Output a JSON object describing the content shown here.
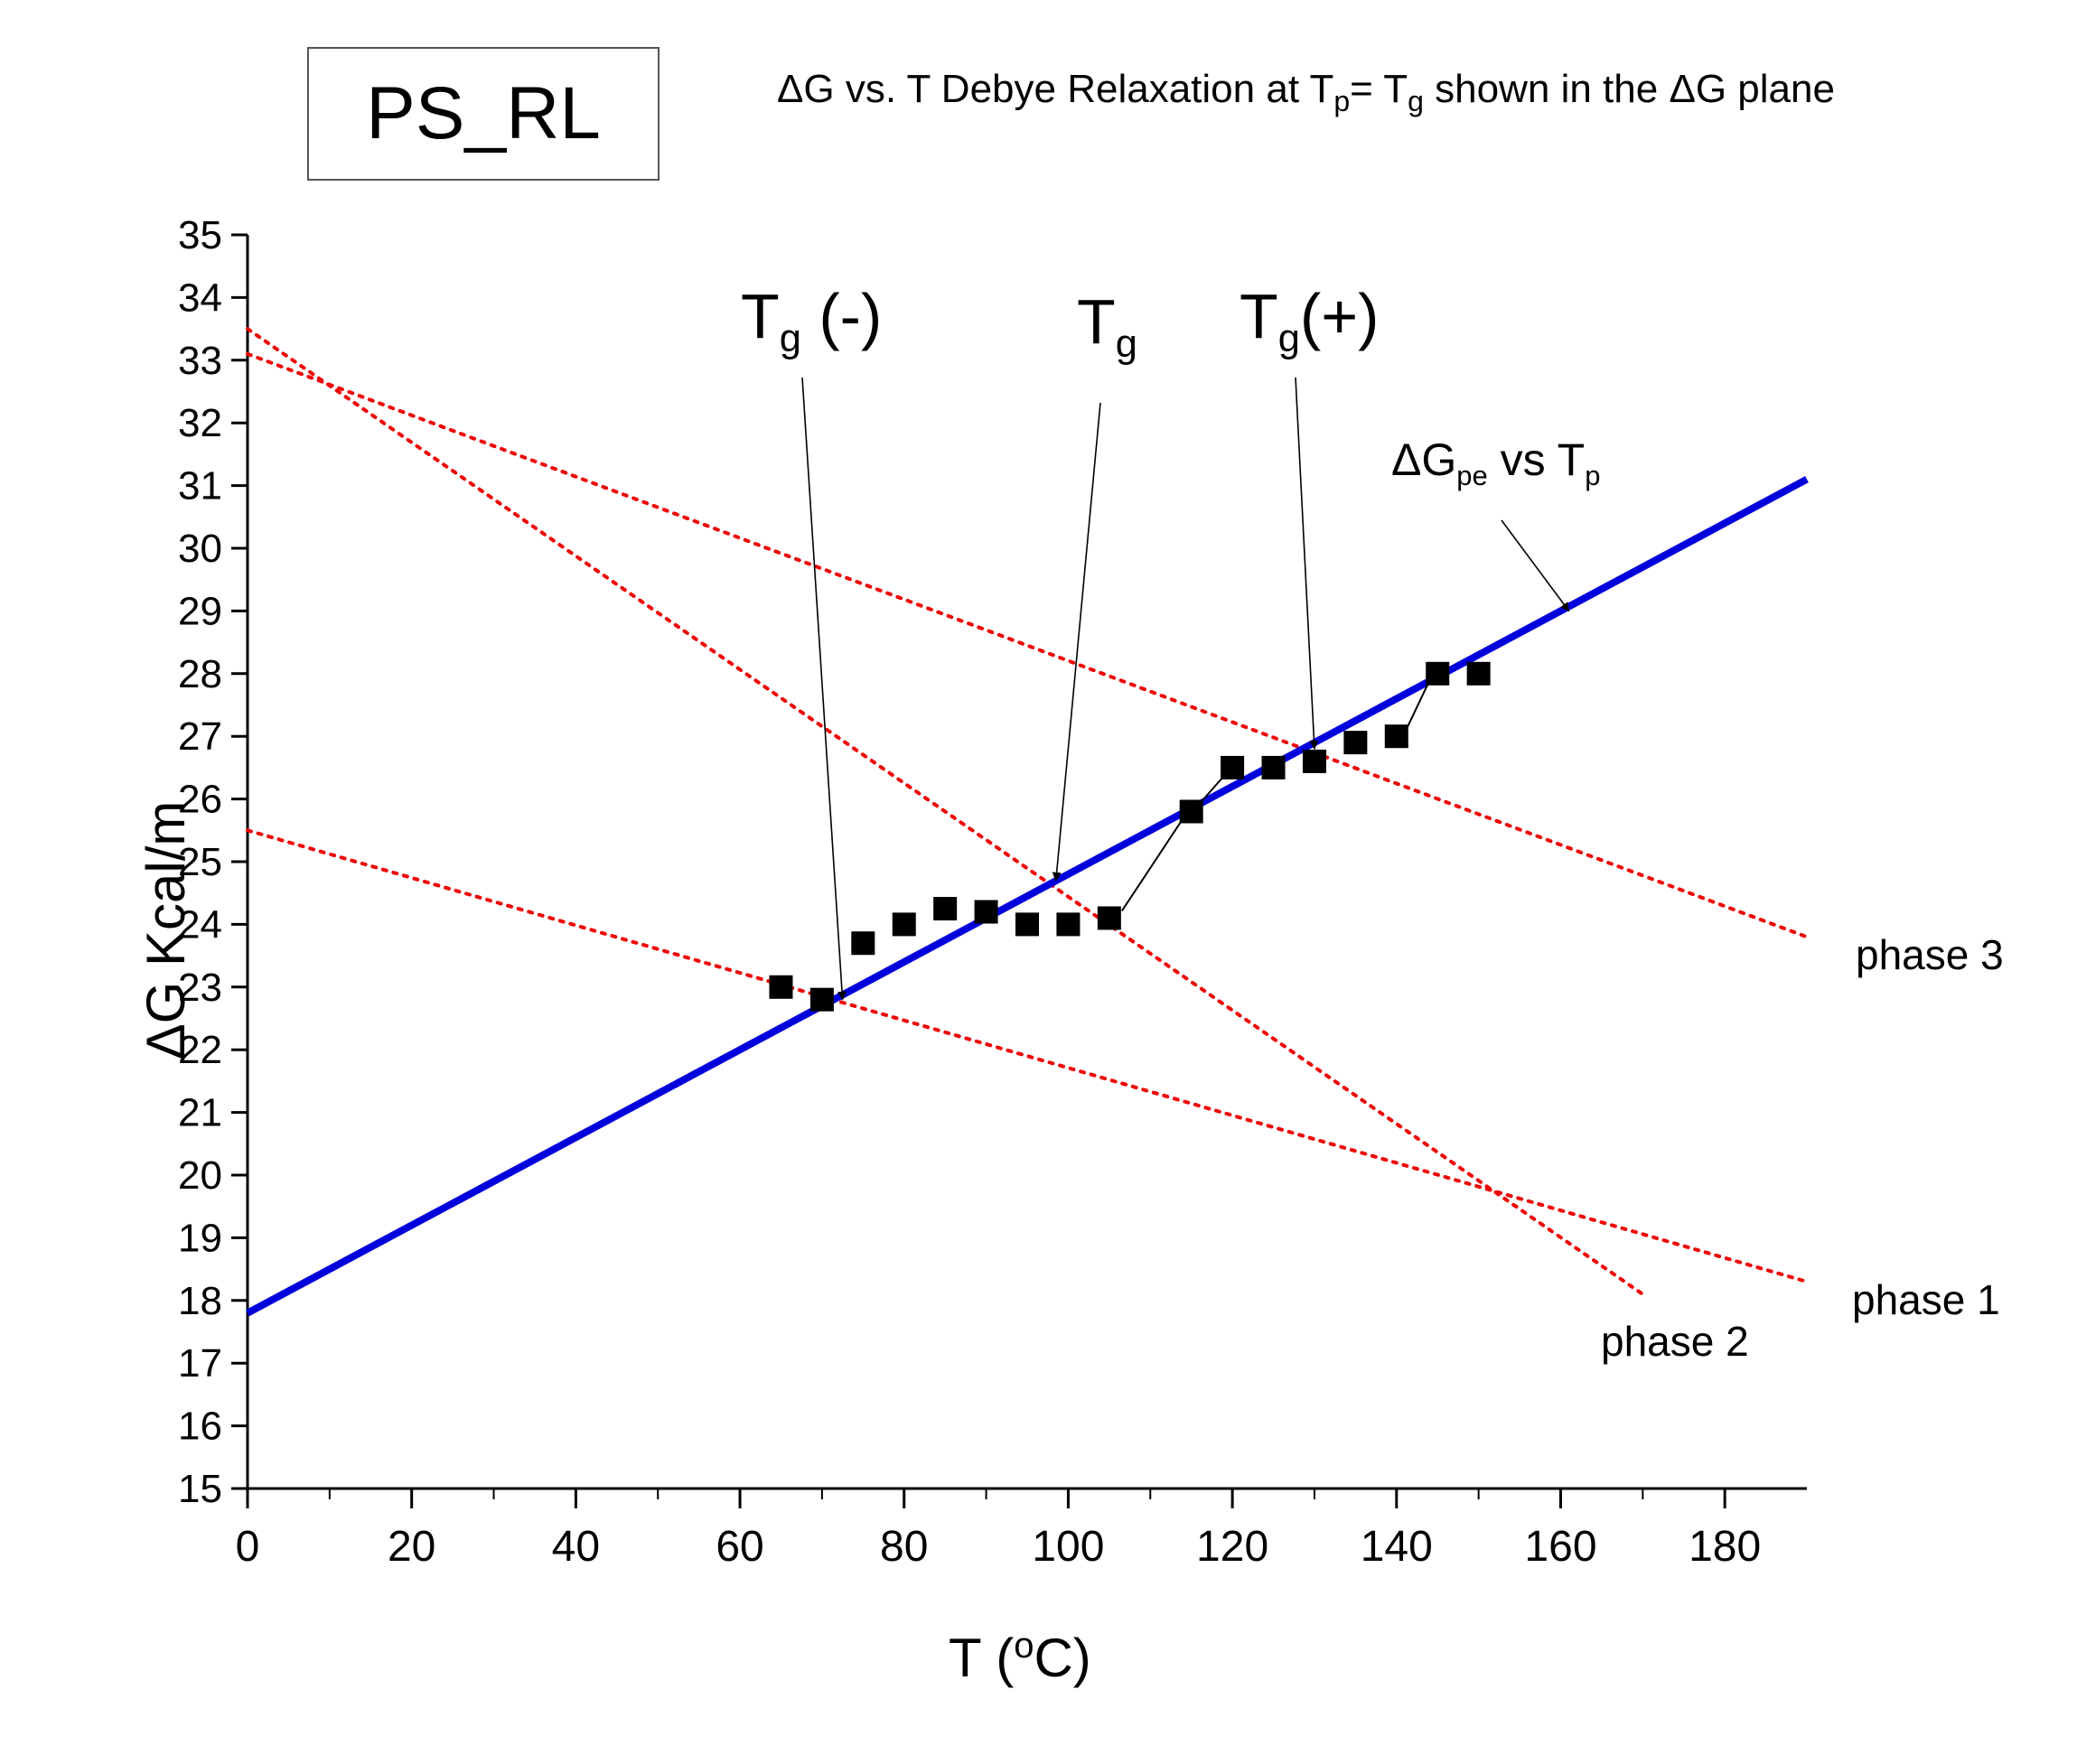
{
  "title_box": "PS_RL",
  "subtitle": {
    "p1": "ΔG vs. T Debye Relaxation at T",
    "sub1": "p",
    "p2": "= T",
    "sub2": "g",
    "p3": " shown in the ΔG plane"
  },
  "axes": {
    "ylabel": "ΔG Kcal/m",
    "xlabel_pre": "T (",
    "xlabel_sup": "o",
    "xlabel_post": "C)"
  },
  "annotations": {
    "tg_minus": {
      "main": "T",
      "sub": "g",
      "rest": " (-)"
    },
    "tg": {
      "main": "T",
      "sub": "g",
      "rest": ""
    },
    "tg_plus": {
      "main": "T",
      "sub": "g",
      "rest": "(+)"
    },
    "dgpe": {
      "main": "ΔG",
      "sub": "pe",
      "mid": " vs T",
      "sub2": "p"
    }
  },
  "phase_labels": {
    "phase1": "phase 1",
    "phase2": "phase 2",
    "phase3": "phase 3"
  },
  "colors": {
    "fit_line": "#0000dd",
    "phase_lines": "#ee0000",
    "markers": "#000000"
  },
  "chart_data": {
    "type": "scatter",
    "xlim": [
      0,
      190
    ],
    "ylim": [
      15,
      35
    ],
    "x_ticks": [
      0,
      20,
      40,
      60,
      80,
      100,
      120,
      140,
      160,
      180
    ],
    "y_ticks": [
      15,
      16,
      17,
      18,
      19,
      20,
      21,
      22,
      23,
      24,
      25,
      26,
      27,
      28,
      29,
      30,
      31,
      32,
      33,
      34,
      35
    ],
    "points": {
      "x": [
        65,
        70,
        75,
        80,
        85,
        90,
        95,
        100,
        105,
        115,
        120,
        125,
        130,
        135,
        140,
        145,
        150
      ],
      "y": [
        23.0,
        22.8,
        23.7,
        24.0,
        24.25,
        24.2,
        24.0,
        24.0,
        24.1,
        25.8,
        26.5,
        26.5,
        26.6,
        26.9,
        27.0,
        28.0,
        28.0
      ]
    },
    "fit_line": {
      "name": "ΔGpe vs Tp",
      "x": [
        0,
        190
      ],
      "y": [
        17.8,
        31.1
      ]
    },
    "phase_lines": [
      {
        "name": "phase 1",
        "x": [
          0,
          190
        ],
        "y": [
          25.5,
          18.3
        ]
      },
      {
        "name": "phase 2",
        "x": [
          0,
          170
        ],
        "y": [
          33.5,
          18.1
        ]
      },
      {
        "name": "phase 3",
        "x": [
          0,
          190
        ],
        "y": [
          33.1,
          23.8
        ]
      }
    ],
    "annotation_targets": {
      "tg_minus": [
        72.5,
        22.8
      ],
      "tg": [
        98.5,
        24.7
      ],
      "tg_plus": [
        130,
        26.8
      ],
      "dgpe": [
        161,
        29.0
      ]
    }
  }
}
